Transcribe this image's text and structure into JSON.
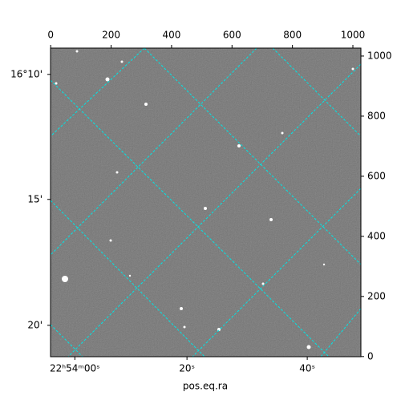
{
  "chart_data": {
    "type": "image",
    "xlabel": "pos.eq.ra",
    "xlim": [
      -0.5,
      1026.5
    ],
    "ylim": [
      -0.5,
      1026.5
    ],
    "xticks": [
      0,
      200,
      400,
      600,
      800,
      1000
    ],
    "yticks": [
      0,
      200,
      400,
      600,
      800,
      1000
    ],
    "ra_ticks": [
      {
        "value": 80,
        "label": "22ʰ54ᵐ00ˢ"
      },
      {
        "value": 451,
        "label": "20ˢ"
      },
      {
        "value": 849,
        "label": "40ˢ"
      }
    ],
    "dec_ticks": [
      {
        "value": 939,
        "label": "16°10'"
      },
      {
        "value": 523,
        "label": "15'"
      },
      {
        "value": 104,
        "label": "20'"
      }
    ],
    "grid_color": "#00e5e5"
  }
}
